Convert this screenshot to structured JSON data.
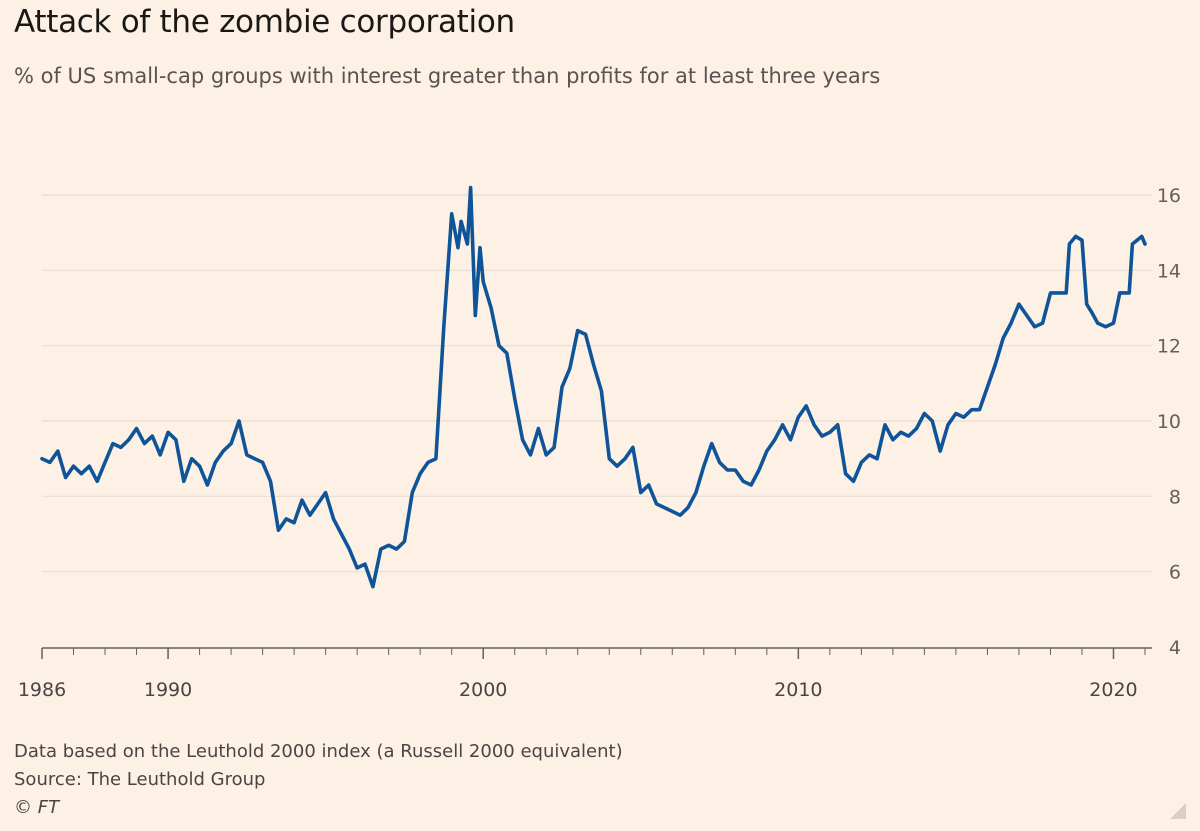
{
  "title": "Attack of the zombie corporation",
  "subtitle": "% of US small-cap groups with interest greater than profits for at least three years",
  "footer": {
    "note": "Data based on the Leuthold 2000 index (a Russell 2000 equivalent)",
    "source": "Source: The Leuthold Group",
    "copyright": "© FT"
  },
  "colors": {
    "background": "#fdf1e6",
    "line": "#0f5499",
    "grid": "#e8ddd3",
    "axis": "#66605c"
  },
  "chart_data": {
    "type": "line",
    "title": "Attack of the zombie corporation",
    "subtitle": "% of US small-cap groups with interest greater than profits for at least three years",
    "xlabel": "",
    "ylabel": "",
    "xlim": [
      1986,
      2021
    ],
    "ylim": [
      4,
      16
    ],
    "y_ticks": [
      4,
      6,
      8,
      10,
      12,
      14,
      16
    ],
    "y_tick_labels": [
      "4",
      "6",
      "8",
      "10",
      "12",
      "14",
      "16"
    ],
    "x_ticks": [
      1986,
      1990,
      2000,
      2010,
      2020
    ],
    "x_tick_labels": [
      "1986",
      "1990",
      "2000",
      "2010",
      "2020"
    ],
    "y_axis_position": "right",
    "grid": "horizontal",
    "series": [
      {
        "values": [
          [
            1986.0,
            9.0
          ],
          [
            1986.25,
            8.9
          ],
          [
            1986.5,
            9.2
          ],
          [
            1986.75,
            8.5
          ],
          [
            1987.0,
            8.8
          ],
          [
            1987.25,
            8.6
          ],
          [
            1987.5,
            8.8
          ],
          [
            1987.75,
            8.4
          ],
          [
            1988.0,
            8.9
          ],
          [
            1988.25,
            9.4
          ],
          [
            1988.5,
            9.3
          ],
          [
            1988.75,
            9.5
          ],
          [
            1989.0,
            9.8
          ],
          [
            1989.25,
            9.4
          ],
          [
            1989.5,
            9.6
          ],
          [
            1989.75,
            9.1
          ],
          [
            1990.0,
            9.7
          ],
          [
            1990.25,
            9.5
          ],
          [
            1990.5,
            8.4
          ],
          [
            1990.75,
            9.0
          ],
          [
            1991.0,
            8.8
          ],
          [
            1991.25,
            8.3
          ],
          [
            1991.5,
            8.9
          ],
          [
            1991.75,
            9.2
          ],
          [
            1992.0,
            9.4
          ],
          [
            1992.25,
            10.0
          ],
          [
            1992.5,
            9.1
          ],
          [
            1992.75,
            9.0
          ],
          [
            1993.0,
            8.9
          ],
          [
            1993.25,
            8.4
          ],
          [
            1993.5,
            7.1
          ],
          [
            1993.75,
            7.4
          ],
          [
            1994.0,
            7.3
          ],
          [
            1994.25,
            7.9
          ],
          [
            1994.5,
            7.5
          ],
          [
            1994.75,
            7.8
          ],
          [
            1995.0,
            8.1
          ],
          [
            1995.25,
            7.4
          ],
          [
            1995.5,
            7.0
          ],
          [
            1995.75,
            6.6
          ],
          [
            1996.0,
            6.1
          ],
          [
            1996.25,
            6.2
          ],
          [
            1996.5,
            5.6
          ],
          [
            1996.75,
            6.6
          ],
          [
            1997.0,
            6.7
          ],
          [
            1997.25,
            6.6
          ],
          [
            1997.5,
            6.8
          ],
          [
            1997.75,
            8.1
          ],
          [
            1998.0,
            8.6
          ],
          [
            1998.25,
            8.9
          ],
          [
            1998.5,
            9.0
          ],
          [
            1998.75,
            12.5
          ],
          [
            1999.0,
            15.5
          ],
          [
            1999.2,
            14.6
          ],
          [
            1999.3,
            15.3
          ],
          [
            1999.5,
            14.7
          ],
          [
            1999.6,
            16.2
          ],
          [
            1999.75,
            12.8
          ],
          [
            1999.9,
            14.6
          ],
          [
            2000.0,
            13.7
          ],
          [
            2000.25,
            13.0
          ],
          [
            2000.5,
            12.0
          ],
          [
            2000.75,
            11.8
          ],
          [
            2001.0,
            10.6
          ],
          [
            2001.25,
            9.5
          ],
          [
            2001.5,
            9.1
          ],
          [
            2001.75,
            9.8
          ],
          [
            2002.0,
            9.1
          ],
          [
            2002.25,
            9.3
          ],
          [
            2002.5,
            10.9
          ],
          [
            2002.75,
            11.4
          ],
          [
            2003.0,
            12.4
          ],
          [
            2003.25,
            12.3
          ],
          [
            2003.5,
            11.5
          ],
          [
            2003.75,
            10.8
          ],
          [
            2004.0,
            9.0
          ],
          [
            2004.25,
            8.8
          ],
          [
            2004.5,
            9.0
          ],
          [
            2004.75,
            9.3
          ],
          [
            2005.0,
            8.1
          ],
          [
            2005.25,
            8.3
          ],
          [
            2005.5,
            7.8
          ],
          [
            2005.75,
            7.7
          ],
          [
            2006.0,
            7.6
          ],
          [
            2006.25,
            7.5
          ],
          [
            2006.5,
            7.7
          ],
          [
            2006.75,
            8.1
          ],
          [
            2007.0,
            8.8
          ],
          [
            2007.25,
            9.4
          ],
          [
            2007.5,
            8.9
          ],
          [
            2007.75,
            8.7
          ],
          [
            2008.0,
            8.7
          ],
          [
            2008.25,
            8.4
          ],
          [
            2008.5,
            8.3
          ],
          [
            2008.75,
            8.7
          ],
          [
            2009.0,
            9.2
          ],
          [
            2009.25,
            9.5
          ],
          [
            2009.5,
            9.9
          ],
          [
            2009.75,
            9.5
          ],
          [
            2010.0,
            10.1
          ],
          [
            2010.25,
            10.4
          ],
          [
            2010.5,
            9.9
          ],
          [
            2010.75,
            9.6
          ],
          [
            2011.0,
            9.7
          ],
          [
            2011.25,
            9.9
          ],
          [
            2011.5,
            8.6
          ],
          [
            2011.75,
            8.4
          ],
          [
            2012.0,
            8.9
          ],
          [
            2012.25,
            9.1
          ],
          [
            2012.5,
            9.0
          ],
          [
            2012.75,
            9.9
          ],
          [
            2013.0,
            9.5
          ],
          [
            2013.25,
            9.7
          ],
          [
            2013.5,
            9.6
          ],
          [
            2013.75,
            9.8
          ],
          [
            2014.0,
            10.2
          ],
          [
            2014.25,
            10.0
          ],
          [
            2014.5,
            9.2
          ],
          [
            2014.75,
            9.9
          ],
          [
            2015.0,
            10.2
          ],
          [
            2015.25,
            10.1
          ],
          [
            2015.5,
            10.3
          ],
          [
            2015.75,
            10.3
          ],
          [
            2016.0,
            10.9
          ],
          [
            2016.25,
            11.5
          ],
          [
            2016.5,
            12.2
          ],
          [
            2016.75,
            12.6
          ],
          [
            2017.0,
            13.1
          ],
          [
            2017.25,
            12.8
          ],
          [
            2017.5,
            12.5
          ],
          [
            2017.75,
            12.6
          ],
          [
            2018.0,
            13.4
          ],
          [
            2018.5,
            13.4
          ],
          [
            2018.6,
            14.7
          ],
          [
            2018.8,
            14.9
          ],
          [
            2019.0,
            14.8
          ],
          [
            2019.15,
            13.1
          ],
          [
            2019.3,
            12.9
          ],
          [
            2019.5,
            12.6
          ],
          [
            2019.75,
            12.5
          ],
          [
            2020.0,
            12.6
          ],
          [
            2020.2,
            13.4
          ],
          [
            2020.5,
            13.4
          ],
          [
            2020.6,
            14.7
          ],
          [
            2020.75,
            14.8
          ],
          [
            2020.9,
            14.9
          ],
          [
            2021.0,
            14.7
          ]
        ]
      }
    ]
  }
}
